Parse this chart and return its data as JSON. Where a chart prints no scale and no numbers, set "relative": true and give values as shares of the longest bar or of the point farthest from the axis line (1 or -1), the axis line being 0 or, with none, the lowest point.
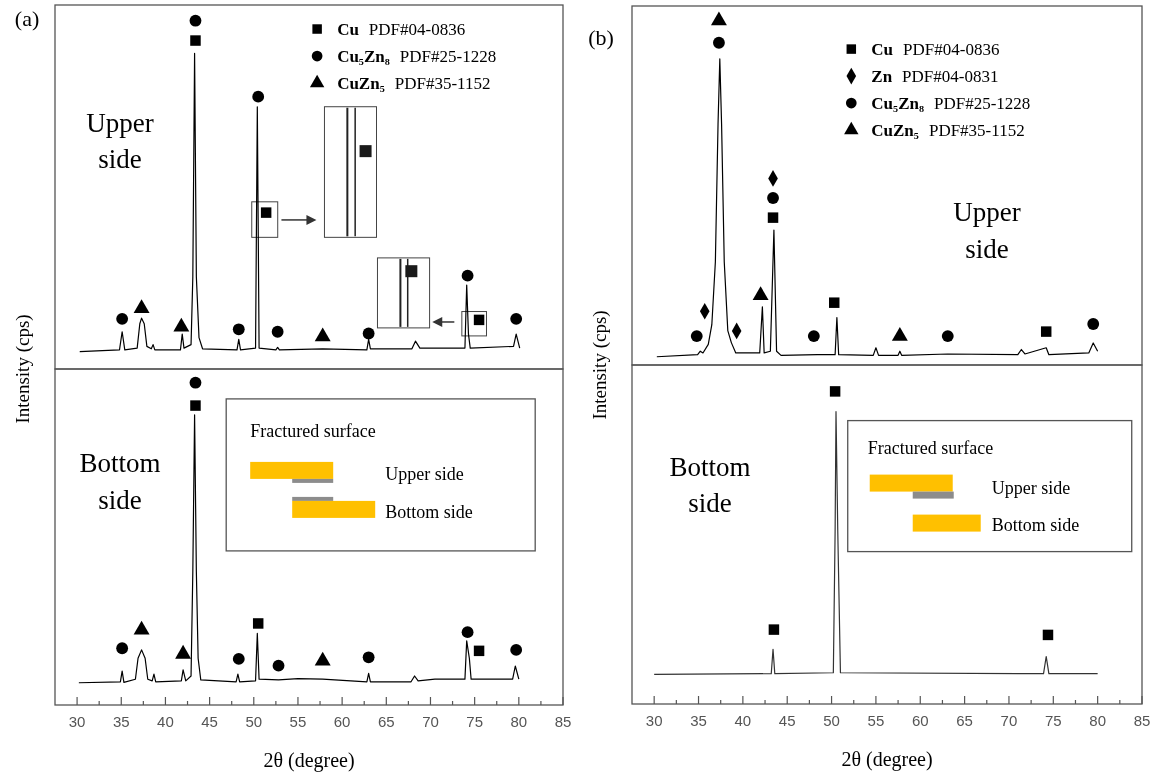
{
  "chart_data": [
    {
      "type": "line",
      "relative": true,
      "xlim": [
        27.5,
        85
      ],
      "tick_labels": false,
      "ylabel": "Intensity (cps)",
      "legend": "top right",
      "annotations": [
        "(a)",
        "Upper side"
      ],
      "series": [
        {
          "color": "#000000",
          "x": [
            30.3,
            34.8,
            35.1,
            35.4,
            36.8,
            37.1,
            37.3,
            37.6,
            37.9,
            38.4,
            38.6,
            38.8,
            41.7,
            41.9,
            42.1,
            42.9,
            43.1,
            43.3,
            43.5,
            43.8,
            44.2,
            48.1,
            48.3,
            48.5,
            50.2,
            50.4,
            50.6,
            52.5,
            52.7,
            52.9,
            57.8,
            62.8,
            63.0,
            63.2,
            67.9,
            68.3,
            68.8,
            73.9,
            74.1,
            74.3,
            74.5,
            79.4,
            79.7,
            80.1
          ],
          "values": [
            0.05,
            0.055,
            0.107,
            0.055,
            0.06,
            0.13,
            0.146,
            0.13,
            0.065,
            0.058,
            0.07,
            0.055,
            0.055,
            0.1,
            0.06,
            0.07,
            0.265,
            0.906,
            0.265,
            0.09,
            0.058,
            0.055,
            0.085,
            0.055,
            0.06,
            0.753,
            0.06,
            0.055,
            0.062,
            0.055,
            0.058,
            0.055,
            0.085,
            0.058,
            0.058,
            0.08,
            0.06,
            0.06,
            0.241,
            0.1,
            0.06,
            0.065,
            0.1,
            0.06
          ]
        },
        {
          "type": "scatter",
          "name": "Cu PDF#04-0836",
          "marker": "square",
          "color": "#000000",
          "x": [
            43.4,
            51.4,
            75.5
          ],
          "values": [
            0.943,
            0.449,
            0.141
          ]
        },
        {
          "type": "scatter",
          "name": "Cu₅Zn₈ PDF#25-1228",
          "marker": "circle",
          "color": "#000000",
          "x": [
            35.1,
            43.4,
            48.3,
            50.5,
            52.7,
            63.0,
            74.2,
            79.7
          ],
          "values": [
            0.144,
            1,
            0.114,
            0.782,
            0.107,
            0.102,
            0.268,
            0.144
          ]
        },
        {
          "type": "scatter",
          "name": "CuZn₅ PDF#35-1152",
          "marker": "triangle",
          "color": "#000000",
          "x": [
            37.3,
            41.8,
            57.8
          ],
          "values": [
            0.174,
            0.121,
            0.093
          ]
        }
      ]
    },
    {
      "type": "line",
      "relative": true,
      "xlim": [
        27.5,
        85
      ],
      "tick_labels": "x",
      "xlabel": "2θ (degree)",
      "xticks": [
        30,
        {
          "value": 32.5,
          "label": null
        },
        35,
        {
          "value": 37.5,
          "label": null
        },
        40,
        {
          "value": 42.5,
          "label": null
        },
        45,
        {
          "value": 47.5,
          "label": null
        },
        50,
        {
          "value": 52.5,
          "label": null
        },
        55,
        {
          "value": 57.5,
          "label": null
        },
        60,
        {
          "value": 62.5,
          "label": null
        },
        65,
        {
          "value": 67.5,
          "label": null
        },
        70,
        {
          "value": 72.5,
          "label": null
        },
        75,
        {
          "value": 77.5,
          "label": null
        },
        80,
        {
          "value": 82.5,
          "label": null
        },
        85
      ],
      "annotations": [
        "Bottom side",
        "Fractured surface",
        "Upper side",
        "Bottom side"
      ],
      "series": [
        {
          "color": "#000000",
          "x": [
            30.2,
            34.9,
            35.1,
            35.3,
            36.6,
            36.9,
            37.3,
            37.7,
            38.0,
            38.5,
            38.7,
            38.9,
            41.8,
            42.0,
            42.3,
            42.9,
            43.1,
            43.3,
            43.5,
            43.7,
            44.0,
            48.0,
            48.2,
            48.4,
            50.2,
            50.4,
            50.6,
            52.8,
            55.0,
            57.8,
            62.8,
            63.0,
            63.2,
            67.8,
            68.2,
            68.6,
            70.5,
            73.9,
            74.1,
            74.4,
            74.6,
            79.3,
            79.6,
            80.0
          ],
          "values": [
            0.069,
            0.072,
            0.105,
            0.07,
            0.08,
            0.145,
            0.171,
            0.145,
            0.08,
            0.075,
            0.096,
            0.072,
            0.075,
            0.109,
            0.075,
            0.09,
            0.414,
            0.9,
            0.414,
            0.145,
            0.078,
            0.072,
            0.096,
            0.072,
            0.075,
            0.222,
            0.08,
            0.078,
            0.082,
            0.08,
            0.072,
            0.098,
            0.072,
            0.072,
            0.09,
            0.075,
            0.08,
            0.08,
            0.199,
            0.145,
            0.08,
            0.08,
            0.121,
            0.08
          ]
        },
        {
          "type": "scatter",
          "marker": "square",
          "color": "#000000",
          "x": [
            43.4,
            50.5,
            75.5
          ],
          "values": [
            0.929,
            0.253,
            0.168
          ]
        },
        {
          "type": "scatter",
          "marker": "circle",
          "color": "#000000",
          "x": [
            35.1,
            43.4,
            48.3,
            52.8,
            63.0,
            74.2,
            79.7
          ],
          "values": [
            0.176,
            1,
            0.143,
            0.122,
            0.148,
            0.226,
            0.171
          ]
        },
        {
          "type": "scatter",
          "marker": "triangle",
          "color": "#000000",
          "x": [
            37.3,
            42.0,
            57.8
          ],
          "values": [
            0.233,
            0.158,
            0.137
          ]
        }
      ]
    },
    {
      "type": "line",
      "relative": true,
      "xlim": [
        27.5,
        85
      ],
      "tick_labels": false,
      "ylabel": "Intensity (cps)",
      "legend": "top right",
      "annotations": [
        "(b)",
        "Upper side"
      ],
      "series": [
        {
          "color": "#000000",
          "x": [
            30.3,
            34.9,
            35.2,
            35.5,
            36.1,
            36.5,
            36.9,
            37.2,
            37.4,
            37.6,
            37.9,
            38.3,
            38.7,
            39.2,
            41.9,
            42.2,
            42.4,
            43.1,
            43.5,
            43.8,
            44.3,
            48.4,
            50.4,
            50.6,
            50.8,
            54.7,
            55.0,
            55.3,
            57.5,
            57.7,
            57.9,
            63.1,
            71.0,
            71.4,
            71.8,
            74.2,
            74.5,
            79.0,
            79.5,
            80.0
          ],
          "values": [
            0.024,
            0.03,
            0.04,
            0.035,
            0.06,
            0.117,
            0.3,
            0.7,
            0.889,
            0.7,
            0.3,
            0.1,
            0.065,
            0.035,
            0.035,
            0.169,
            0.035,
            0.04,
            0.392,
            0.04,
            0.028,
            0.03,
            0.03,
            0.138,
            0.03,
            0.028,
            0.05,
            0.028,
            0.028,
            0.04,
            0.028,
            0.032,
            0.03,
            0.045,
            0.032,
            0.05,
            0.03,
            0.035,
            0.064,
            0.04
          ]
        },
        {
          "type": "scatter",
          "name": "Cu PDF#04-0836",
          "marker": "square",
          "color": "#000000",
          "x": [
            43.4,
            50.3,
            74.2
          ],
          "values": [
            0.428,
            0.181,
            0.097
          ]
        },
        {
          "type": "scatter",
          "name": "Zn PDF#04-0831",
          "marker": "diamond",
          "color": "#000000",
          "x": [
            35.7,
            39.3,
            43.4
          ],
          "values": [
            0.156,
            0.099,
            0.542
          ]
        },
        {
          "type": "scatter",
          "name": "Cu₅Zn₈ PDF#25-1228",
          "marker": "circle",
          "color": "#000000",
          "x": [
            34.8,
            37.3,
            43.4,
            48.0,
            63.1,
            79.5
          ],
          "values": [
            0.084,
            0.936,
            0.485,
            0.084,
            0.084,
            0.119
          ]
        },
        {
          "type": "scatter",
          "name": "CuZn₅ PDF#35-1152",
          "marker": "triangle",
          "color": "#000000",
          "x": [
            37.3,
            42.0,
            57.7
          ],
          "values": [
            1,
            0.202,
            0.084
          ]
        }
      ]
    },
    {
      "type": "line",
      "relative": true,
      "xlim": [
        27.5,
        85
      ],
      "tick_labels": "x",
      "xlabel": "2θ (degree)",
      "xticks": [
        30,
        {
          "value": 32.5,
          "label": null
        },
        35,
        {
          "value": 37.5,
          "label": null
        },
        40,
        {
          "value": 42.5,
          "label": null
        },
        45,
        {
          "value": 47.5,
          "label": null
        },
        50,
        {
          "value": 52.5,
          "label": null
        },
        55,
        {
          "value": 57.5,
          "label": null
        },
        60,
        {
          "value": 62.5,
          "label": null
        },
        65,
        {
          "value": 67.5,
          "label": null
        },
        70,
        {
          "value": 72.5,
          "label": null
        },
        75,
        {
          "value": 77.5,
          "label": null
        },
        80,
        {
          "value": 82.5,
          "label": null
        },
        85
      ],
      "annotations": [
        "Bottom side",
        "Fractured surface",
        "Upper side",
        "Bottom side"
      ],
      "series": [
        {
          "color": "#333333",
          "x": [
            30.0,
            43.2,
            43.4,
            43.6,
            50.2,
            50.4,
            50.5,
            50.7,
            51.0,
            73.9,
            74.2,
            74.5,
            80.0
          ],
          "values": [
            0.095,
            0.097,
            0.175,
            0.097,
            0.1,
            0.552,
            0.935,
            0.552,
            0.1,
            0.097,
            0.152,
            0.097,
            0.097
          ]
        },
        {
          "type": "scatter",
          "marker": "square",
          "color": "#000000",
          "x": [
            43.5,
            50.4,
            74.4
          ],
          "values": [
            0.238,
            1,
            0.221
          ]
        }
      ]
    }
  ]
}
